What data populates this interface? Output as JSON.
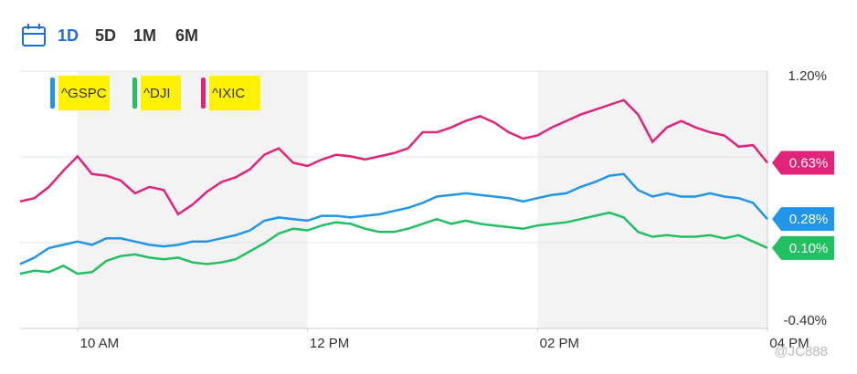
{
  "toolbar": {
    "ranges": [
      "1D",
      "5D",
      "1M",
      "6M"
    ],
    "active": 0
  },
  "watermark": "@JC888",
  "chart_data": {
    "type": "line",
    "x": [
      9.5,
      9.625,
      9.75,
      9.875,
      10,
      10.125,
      10.25,
      10.375,
      10.5,
      10.625,
      10.75,
      10.875,
      11,
      11.125,
      11.25,
      11.375,
      11.5,
      11.625,
      11.75,
      11.875,
      12,
      12.125,
      12.25,
      12.375,
      12.5,
      12.625,
      12.75,
      12.875,
      13,
      13.125,
      13.25,
      13.375,
      13.5,
      13.625,
      13.75,
      13.875,
      14,
      14.125,
      14.25,
      14.375,
      14.5,
      14.625,
      14.75,
      14.875,
      15,
      15.125,
      15.25,
      15.375,
      15.5,
      15.625,
      15.75,
      15.875,
      16
    ],
    "xlim": [
      9.5,
      16
    ],
    "xticks": [
      {
        "value": 10,
        "label": "10 AM"
      },
      {
        "value": 12,
        "label": "12 PM"
      },
      {
        "value": 14,
        "label": "02 PM"
      },
      {
        "value": 16,
        "label": "04 PM"
      }
    ],
    "ylim": [
      -0.4,
      1.2
    ],
    "yticks": [
      {
        "value": 1.2,
        "label": "1.20%"
      },
      {
        "value": 0.667,
        "label": null
      },
      {
        "value": 0.133,
        "label": null
      },
      {
        "value": -0.4,
        "label": "-0.40%"
      }
    ],
    "grid": true,
    "series": [
      {
        "name": "^GSPC",
        "color": "#2196e8",
        "values": [
          0,
          0.04,
          0.1,
          0.12,
          0.14,
          0.12,
          0.16,
          0.16,
          0.14,
          0.12,
          0.11,
          0.12,
          0.14,
          0.14,
          0.16,
          0.18,
          0.21,
          0.27,
          0.29,
          0.28,
          0.27,
          0.3,
          0.3,
          0.29,
          0.3,
          0.31,
          0.33,
          0.35,
          0.38,
          0.42,
          0.43,
          0.44,
          0.43,
          0.42,
          0.41,
          0.39,
          0.41,
          0.43,
          0.44,
          0.48,
          0.51,
          0.55,
          0.56,
          0.46,
          0.42,
          0.44,
          0.42,
          0.42,
          0.44,
          0.42,
          0.41,
          0.38,
          0.28
        ],
        "value_labels": [
          null,
          null,
          null,
          null,
          null,
          null,
          null,
          null,
          null,
          null,
          null,
          null,
          null,
          null,
          null,
          null,
          null,
          null,
          null,
          null,
          null,
          null,
          null,
          null,
          null,
          null,
          null,
          null,
          null,
          null,
          null,
          null,
          null,
          null,
          null,
          null,
          null,
          null,
          null,
          null,
          null,
          null,
          null,
          null,
          null,
          null,
          null,
          null,
          null,
          null,
          null,
          null,
          "0.28%"
        ]
      },
      {
        "name": "^DJI",
        "color": "#21c063",
        "values": [
          -0.06,
          -0.04,
          -0.05,
          -0.01,
          -0.06,
          -0.05,
          0.02,
          0.05,
          0.06,
          0.04,
          0.03,
          0.04,
          0.01,
          0,
          0.01,
          0.03,
          0.08,
          0.13,
          0.19,
          0.22,
          0.21,
          0.24,
          0.26,
          0.25,
          0.22,
          0.2,
          0.2,
          0.22,
          0.25,
          0.28,
          0.25,
          0.27,
          0.25,
          0.24,
          0.23,
          0.22,
          0.24,
          0.25,
          0.26,
          0.28,
          0.3,
          0.32,
          0.29,
          0.2,
          0.17,
          0.18,
          0.17,
          0.17,
          0.18,
          0.16,
          0.18,
          0.14,
          0.1
        ],
        "value_labels": [
          null,
          null,
          null,
          null,
          null,
          null,
          null,
          null,
          null,
          null,
          null,
          null,
          null,
          null,
          null,
          null,
          null,
          null,
          null,
          null,
          null,
          null,
          null,
          null,
          null,
          null,
          null,
          null,
          null,
          null,
          null,
          null,
          null,
          null,
          null,
          null,
          null,
          null,
          null,
          null,
          null,
          null,
          null,
          null,
          null,
          null,
          null,
          null,
          null,
          null,
          null,
          null,
          "0.10%"
        ]
      },
      {
        "name": "^IXIC",
        "color": "#e2237a",
        "values": [
          0.39,
          0.41,
          0.48,
          0.58,
          0.67,
          0.56,
          0.55,
          0.52,
          0.44,
          0.48,
          0.46,
          0.31,
          0.37,
          0.45,
          0.51,
          0.54,
          0.59,
          0.68,
          0.72,
          0.63,
          0.61,
          0.65,
          0.68,
          0.67,
          0.65,
          0.67,
          0.69,
          0.72,
          0.82,
          0.82,
          0.85,
          0.89,
          0.92,
          0.88,
          0.82,
          0.78,
          0.8,
          0.85,
          0.89,
          0.93,
          0.96,
          0.99,
          1.02,
          0.93,
          0.76,
          0.85,
          0.89,
          0.85,
          0.82,
          0.8,
          0.73,
          0.74,
          0.63
        ],
        "value_labels": [
          null,
          null,
          null,
          null,
          null,
          null,
          null,
          null,
          null,
          null,
          null,
          null,
          null,
          null,
          null,
          null,
          null,
          null,
          null,
          null,
          null,
          null,
          null,
          null,
          null,
          null,
          null,
          null,
          null,
          null,
          null,
          null,
          null,
          null,
          null,
          null,
          null,
          null,
          null,
          null,
          null,
          null,
          null,
          null,
          null,
          null,
          null,
          null,
          null,
          null,
          null,
          null,
          "0.63%"
        ]
      }
    ]
  }
}
